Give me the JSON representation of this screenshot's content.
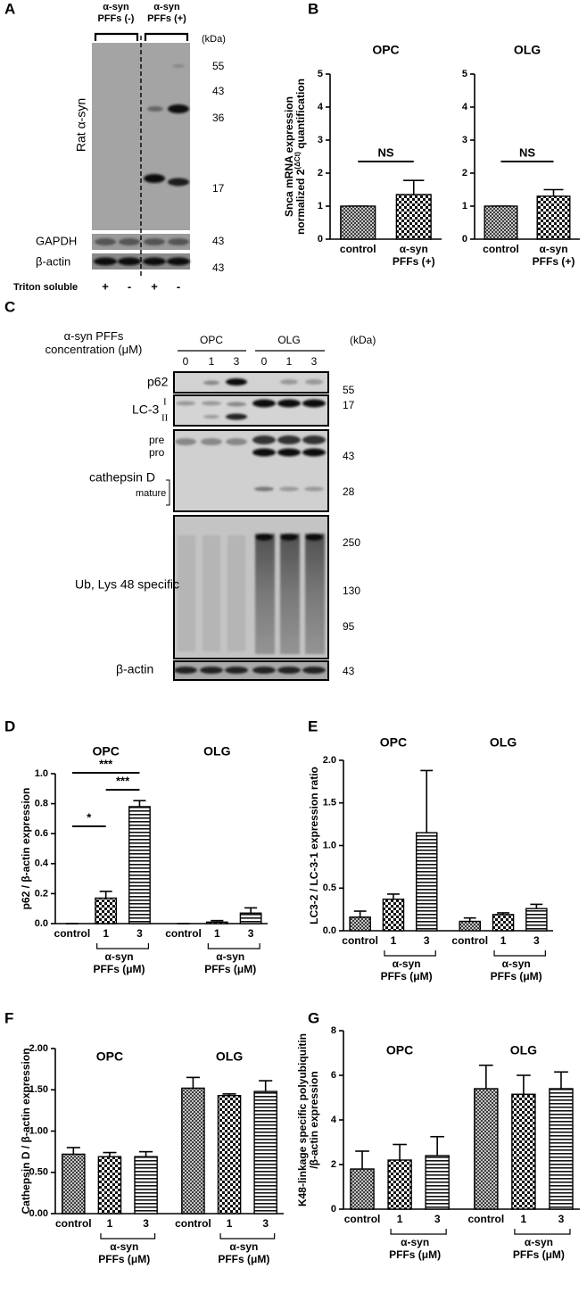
{
  "panel_labels": [
    "A",
    "B",
    "C",
    "D",
    "E",
    "F",
    "G"
  ],
  "blot_a": {
    "lanes_header": [
      "α-syn PFFs (-)",
      "α-syn PFFs (+)"
    ],
    "unit": "(kDa)",
    "markers": [
      "55",
      "43",
      "36",
      "17"
    ],
    "blot_label": "Rat α-syn",
    "loading": [
      "GAPDH",
      "β-actin"
    ],
    "loading_markers": [
      "43",
      "43"
    ],
    "fraction": "Triton soluble",
    "fraction_signs": [
      "+",
      "-",
      "+",
      "-"
    ]
  },
  "blot_c": {
    "treatment": "α-syn PFFs concentration (μM)",
    "groups": [
      "OPC",
      "OLG"
    ],
    "lanes": [
      "0",
      "1",
      "3",
      "0",
      "1",
      "3"
    ],
    "unit": "(kDa)",
    "rows": [
      "p62",
      "LC-3",
      "cathepsin D",
      "Ub, Lys 48 specific",
      "β-actin"
    ],
    "lc3_forms": [
      "I",
      "II"
    ],
    "cathepsin_forms": [
      "pre",
      "pro",
      "mature"
    ],
    "markers": [
      "55",
      "17",
      "43",
      "28",
      "250",
      "130",
      "95",
      "43"
    ]
  },
  "chart_data": [
    {
      "type": "bar",
      "title": "OPC",
      "ylabel": [
        "Snca mRNA expression",
        [
          "normalized 2",
          "(ΔCt)",
          " quantification"
        ]
      ],
      "categories": [
        "control",
        "α-syn PFFs (+)"
      ],
      "values": [
        1,
        1.35
      ],
      "errors": [
        0,
        0.43
      ],
      "patterns": [
        "crosshatch",
        "checker"
      ],
      "ylim": [
        0,
        5
      ],
      "yticks": [
        0,
        1,
        2,
        3,
        4,
        5
      ],
      "annotations": [
        "NS"
      ]
    },
    {
      "type": "bar",
      "title": "OLG",
      "categories": [
        "control",
        "α-syn PFFs (+)"
      ],
      "values": [
        1,
        1.3
      ],
      "errors": [
        0,
        0.2
      ],
      "patterns": [
        "crosshatch",
        "checker"
      ],
      "ylim": [
        0,
        5
      ],
      "yticks": [
        0,
        1,
        2,
        3,
        4,
        5
      ],
      "annotations": [
        "NS"
      ]
    },
    {
      "type": "bar",
      "groups": [
        "OPC",
        "OLG"
      ],
      "ylabel": [
        "p62 / β-actin expression"
      ],
      "categories": [
        "control",
        "1",
        "3",
        "control",
        "1",
        "3"
      ],
      "values": [
        0,
        0.17,
        0.78,
        0,
        0.01,
        0.07
      ],
      "errors": [
        0,
        0.045,
        0.04,
        0,
        0.01,
        0.035
      ],
      "patterns": [
        "crosshatch",
        "checker",
        "hlines",
        "crosshatch",
        "checker",
        "hlines"
      ],
      "group_label": "α-syn PFFs (μM)",
      "ylim": [
        0,
        1.0
      ],
      "yticks": [
        {
          "value": 0,
          "label": "0.0"
        },
        0.2,
        0.4,
        0.6,
        0.8,
        {
          "value": 1.0,
          "label": "1.0"
        }
      ],
      "annotations": [
        "*",
        "***",
        "***"
      ]
    },
    {
      "type": "bar",
      "groups": [
        "OPC",
        "OLG"
      ],
      "ylabel": [
        "LC3-2 / LC-3-1 expression ratio"
      ],
      "categories": [
        "control",
        "1",
        "3",
        "control",
        "1",
        "3"
      ],
      "values": [
        0.16,
        0.37,
        1.15,
        0.11,
        0.19,
        0.26
      ],
      "errors": [
        0.07,
        0.06,
        0.73,
        0.04,
        0.02,
        0.05
      ],
      "patterns": [
        "crosshatch",
        "checker",
        "hlines",
        "crosshatch",
        "checker",
        "hlines"
      ],
      "group_label": "α-syn PFFs (μM)",
      "ylim": [
        0,
        2.0
      ],
      "yticks": [
        {
          "value": 0,
          "label": "0.0"
        },
        0.5,
        {
          "value": 1.0,
          "label": "1.0"
        },
        1.5,
        {
          "value": 2.0,
          "label": "2.0"
        }
      ]
    },
    {
      "type": "bar",
      "groups": [
        "OPC",
        "OLG"
      ],
      "ylabel": [
        "Cathepsin D / β-actin expression"
      ],
      "categories": [
        "control",
        "1",
        "3",
        "control",
        "1",
        "3"
      ],
      "values": [
        0.72,
        0.69,
        0.69,
        1.52,
        1.43,
        1.48
      ],
      "errors": [
        0.08,
        0.05,
        0.06,
        0.13,
        0.02,
        0.13
      ],
      "patterns": [
        "crosshatch",
        "checker",
        "hlines",
        "crosshatch",
        "checker",
        "hlines"
      ],
      "group_label": "α-syn PFFs (μM)",
      "ylim": [
        0,
        2.0
      ],
      "yticks": [
        {
          "value": 0,
          "label": "0.00"
        },
        {
          "value": 0.5,
          "label": "0.50"
        },
        {
          "value": 1.0,
          "label": "1.00"
        },
        {
          "value": 1.5,
          "label": "1.50"
        },
        {
          "value": 2.0,
          "label": "2.00"
        }
      ]
    },
    {
      "type": "bar",
      "groups": [
        "OPC",
        "OLG"
      ],
      "ylabel": [
        "K48-linkage specific polyubiquitin",
        "/β-actin expression"
      ],
      "categories": [
        "control",
        "1",
        "3",
        "control",
        "1",
        "3"
      ],
      "values": [
        1.8,
        2.2,
        2.4,
        5.4,
        5.15,
        5.4
      ],
      "errors": [
        0.8,
        0.7,
        0.85,
        1.05,
        0.85,
        0.75
      ],
      "patterns": [
        "crosshatch",
        "checker",
        "hlines",
        "crosshatch",
        "checker",
        "hlines"
      ],
      "group_label": "α-syn PFFs (μM)",
      "ylim": [
        0,
        8
      ],
      "yticks": [
        0,
        2,
        4,
        6,
        8
      ]
    }
  ]
}
